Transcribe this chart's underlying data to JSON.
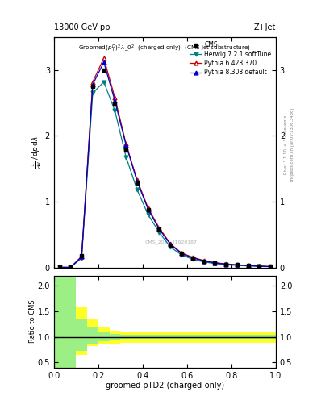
{
  "title_top": "13000 GeV pp",
  "title_right": "Z+Jet",
  "watermark": "CMS_2021_I1920187",
  "rivet_text": "Rivet 3.1.10, ≥ 3.2M events",
  "mcplots_text": "mcplots.cern.ch [arXiv:1306.3436]",
  "xlabel": "groomed pTD2 (charged-only)",
  "cms_x": [
    0.025,
    0.075,
    0.125,
    0.175,
    0.225,
    0.275,
    0.325,
    0.375,
    0.425,
    0.475,
    0.525,
    0.575,
    0.625,
    0.675,
    0.725,
    0.775,
    0.825,
    0.875,
    0.925,
    0.975
  ],
  "cms_y": [
    0.001,
    0.001,
    0.18,
    2.75,
    3.0,
    2.48,
    1.78,
    1.28,
    0.88,
    0.58,
    0.34,
    0.21,
    0.14,
    0.095,
    0.068,
    0.048,
    0.037,
    0.028,
    0.018,
    0.013
  ],
  "mc_x": [
    0.025,
    0.075,
    0.125,
    0.175,
    0.225,
    0.275,
    0.325,
    0.375,
    0.425,
    0.475,
    0.525,
    0.575,
    0.625,
    0.675,
    0.725,
    0.775,
    0.825,
    0.875,
    0.925,
    0.975
  ],
  "herwig_y": [
    0.001,
    0.001,
    0.14,
    2.65,
    2.82,
    2.38,
    1.68,
    1.18,
    0.8,
    0.53,
    0.31,
    0.19,
    0.125,
    0.085,
    0.058,
    0.04,
    0.03,
    0.022,
    0.016,
    0.011
  ],
  "pythia6_y": [
    0.001,
    0.001,
    0.17,
    2.82,
    3.18,
    2.58,
    1.88,
    1.33,
    0.9,
    0.6,
    0.36,
    0.22,
    0.155,
    0.105,
    0.073,
    0.053,
    0.04,
    0.03,
    0.021,
    0.013
  ],
  "pythia8_y": [
    0.001,
    0.001,
    0.16,
    2.78,
    3.12,
    2.53,
    1.86,
    1.31,
    0.88,
    0.58,
    0.35,
    0.21,
    0.145,
    0.098,
    0.068,
    0.049,
    0.037,
    0.028,
    0.019,
    0.012
  ],
  "cms_color": "#000000",
  "herwig_color": "#008080",
  "pythia6_color": "#cc0000",
  "pythia8_color": "#0000cc",
  "ylim": [
    0,
    3.5
  ],
  "xlim": [
    0,
    1
  ],
  "ratio_ylim": [
    0.4,
    2.2
  ],
  "yellow_hi_x": [
    0.0,
    0.05,
    0.1,
    0.15,
    0.2,
    0.25,
    0.3,
    0.35,
    0.4,
    0.45,
    0.5,
    0.55,
    0.6,
    0.65,
    0.7,
    0.75,
    0.8,
    0.85,
    0.9,
    0.95,
    1.0
  ],
  "yellow_hi_y": [
    2.2,
    2.2,
    1.6,
    1.35,
    1.18,
    1.12,
    1.1,
    1.1,
    1.1,
    1.1,
    1.1,
    1.1,
    1.1,
    1.1,
    1.1,
    1.1,
    1.1,
    1.1,
    1.1,
    1.1,
    1.1
  ],
  "yellow_lo_y": [
    0.4,
    0.4,
    0.65,
    0.82,
    0.87,
    0.87,
    0.88,
    0.88,
    0.88,
    0.88,
    0.88,
    0.88,
    0.88,
    0.88,
    0.88,
    0.88,
    0.88,
    0.88,
    0.88,
    0.88,
    0.88
  ],
  "green_hi_y": [
    2.2,
    2.2,
    1.35,
    1.18,
    1.1,
    1.05,
    1.04,
    1.04,
    1.04,
    1.04,
    1.04,
    1.04,
    1.04,
    1.04,
    1.04,
    1.04,
    1.04,
    1.04,
    1.04,
    1.04,
    1.04
  ],
  "green_lo_y": [
    0.4,
    0.4,
    0.72,
    0.87,
    0.91,
    0.94,
    0.96,
    0.96,
    0.96,
    0.96,
    0.96,
    0.96,
    0.96,
    0.96,
    0.96,
    0.96,
    0.96,
    0.96,
    0.96,
    0.96,
    0.96
  ]
}
